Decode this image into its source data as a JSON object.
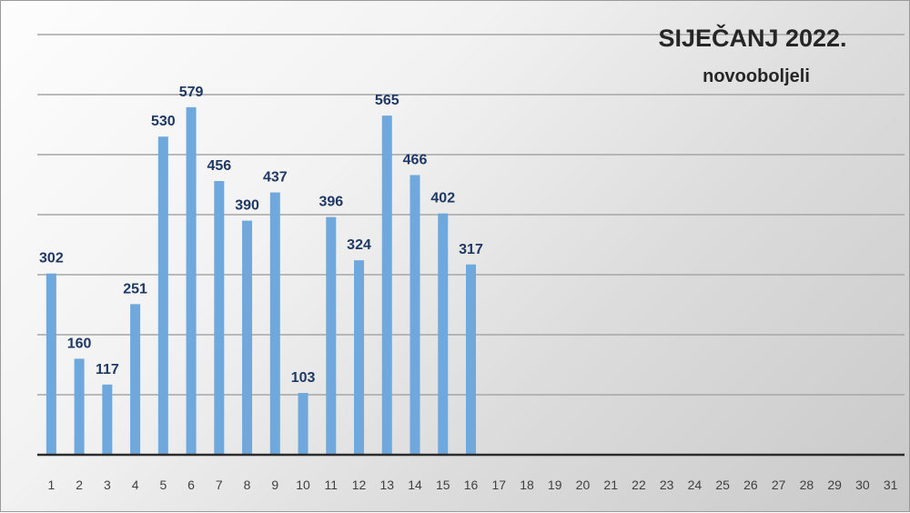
{
  "chart_data": {
    "type": "bar",
    "title": "SIJEČANJ 2022.",
    "subtitle": "novooboljeli",
    "categories": [
      "1",
      "2",
      "3",
      "4",
      "5",
      "6",
      "7",
      "8",
      "9",
      "10",
      "11",
      "12",
      "13",
      "14",
      "15",
      "16",
      "17",
      "18",
      "19",
      "20",
      "21",
      "22",
      "23",
      "24",
      "25",
      "26",
      "27",
      "28",
      "29",
      "30",
      "31"
    ],
    "values": [
      302,
      160,
      117,
      251,
      530,
      579,
      456,
      390,
      437,
      103,
      396,
      324,
      565,
      466,
      402,
      317,
      null,
      null,
      null,
      null,
      null,
      null,
      null,
      null,
      null,
      null,
      null,
      null,
      null,
      null,
      null
    ],
    "ylim": [
      0,
      700
    ],
    "grid": true,
    "bar_color": "#6fa8dc",
    "label_color": "#1f3864"
  }
}
